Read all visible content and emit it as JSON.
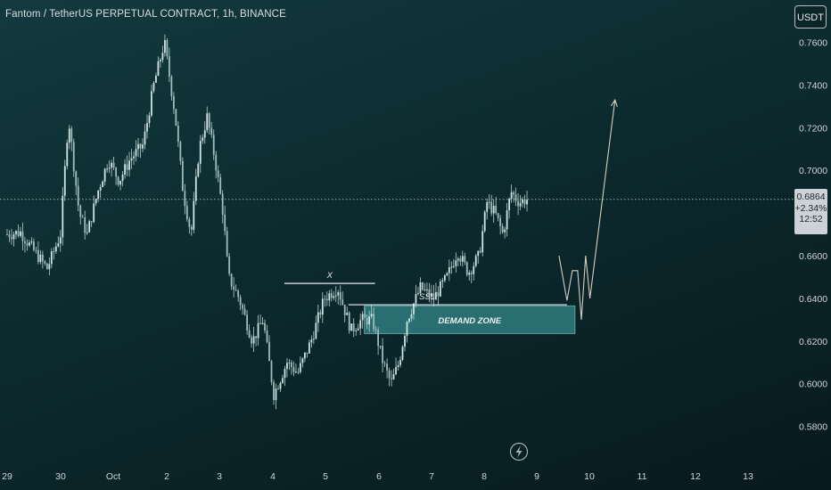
{
  "title": "Fantom / TetherUS PERPETUAL CONTRACT, 1h, BINANCE",
  "currency": "USDT",
  "last_price": {
    "price": "0.6864",
    "change": "+2.34%",
    "countdown": "12:52"
  },
  "colors": {
    "background": "#0c2a2e",
    "candle": "#cfe3e2",
    "wick": "#b9cfcf",
    "demand_zone_fill": "#2f7c7f",
    "demand_zone_border": "#6fb2b2",
    "projection": "#d6cfc0",
    "text": "#cfd6da"
  },
  "icons": {
    "bolt": "lightning-bolt-icon"
  },
  "chart_data": {
    "type": "candlestick",
    "title": "Fantom / TetherUS PERPETUAL CONTRACT, 1h, BINANCE",
    "x_ticks": [
      "29",
      "30",
      "Oct",
      "2",
      "3",
      "4",
      "5",
      "6",
      "7",
      "8",
      "9",
      "10",
      "11",
      "12",
      "13"
    ],
    "y_ticks": [
      "0.7600",
      "0.7400",
      "0.7200",
      "0.7000",
      "0.6800",
      "0.6600",
      "0.6400",
      "0.6200",
      "0.6000",
      "0.5800"
    ],
    "ylim": [
      0.57,
      0.78
    ],
    "price_path": [
      [
        28.85,
        0.67
      ],
      [
        29.1,
        0.671
      ],
      [
        29.3,
        0.664
      ],
      [
        29.6,
        0.654
      ],
      [
        29.85,
        0.67
      ],
      [
        30.0,
        0.725
      ],
      [
        30.2,
        0.68
      ],
      [
        30.35,
        0.67
      ],
      [
        30.55,
        0.69
      ],
      [
        30.75,
        0.705
      ],
      [
        30.95,
        0.695
      ],
      [
        31.15,
        0.705
      ],
      [
        31.4,
        0.712
      ],
      [
        31.6,
        0.74
      ],
      [
        31.8,
        0.76
      ],
      [
        32.0,
        0.726
      ],
      [
        32.15,
        0.69
      ],
      [
        32.3,
        0.67
      ],
      [
        32.45,
        0.71
      ],
      [
        32.6,
        0.725
      ],
      [
        32.75,
        0.705
      ],
      [
        32.9,
        0.68
      ],
      [
        33.0,
        0.65
      ],
      [
        33.2,
        0.64
      ],
      [
        33.45,
        0.62
      ],
      [
        33.65,
        0.63
      ],
      [
        33.85,
        0.595
      ],
      [
        34.1,
        0.61
      ],
      [
        34.3,
        0.605
      ],
      [
        34.55,
        0.62
      ],
      [
        34.8,
        0.64
      ],
      [
        35.05,
        0.645
      ],
      [
        35.3,
        0.625
      ],
      [
        35.5,
        0.63
      ],
      [
        35.7,
        0.63
      ],
      [
        35.9,
        0.61
      ],
      [
        36.05,
        0.6
      ],
      [
        36.2,
        0.61
      ],
      [
        36.35,
        0.63
      ],
      [
        36.6,
        0.645
      ],
      [
        36.85,
        0.64
      ],
      [
        37.1,
        0.65
      ],
      [
        37.3,
        0.662
      ],
      [
        37.5,
        0.652
      ],
      [
        37.7,
        0.66
      ],
      [
        37.85,
        0.685
      ],
      [
        38.0,
        0.68
      ],
      [
        38.15,
        0.67
      ],
      [
        38.3,
        0.69
      ],
      [
        38.45,
        0.685
      ],
      [
        38.6,
        0.6864
      ]
    ],
    "annotations": [
      {
        "label": "X",
        "type": "level",
        "x_start": 34.05,
        "x_end": 35.75,
        "price": 0.647
      },
      {
        "label": "SSL",
        "type": "level",
        "x_start": 35.25,
        "x_end": 39.35,
        "price": 0.637
      },
      {
        "label": "DEMAND ZONE",
        "type": "zone",
        "x_start": 35.55,
        "x_end": 39.5,
        "price_top": 0.6365,
        "price_bottom": 0.6235
      }
    ],
    "projection_path": [
      [
        39.2,
        0.66
      ],
      [
        39.35,
        0.639
      ],
      [
        39.45,
        0.653
      ],
      [
        39.55,
        0.653
      ],
      [
        39.62,
        0.63
      ],
      [
        39.7,
        0.66
      ],
      [
        39.78,
        0.64
      ],
      [
        40.25,
        0.733
      ]
    ],
    "current_price_line": 0.6864
  }
}
